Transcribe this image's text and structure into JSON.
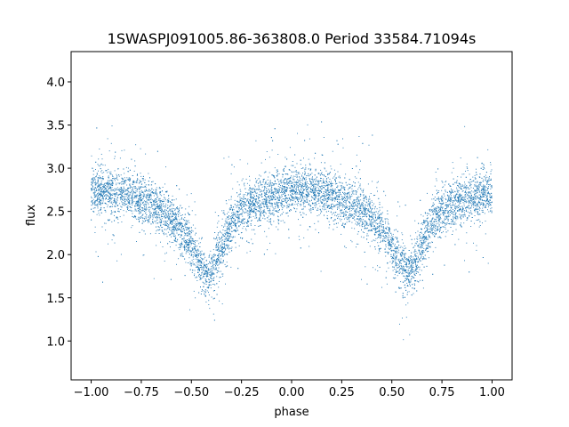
{
  "chart_data": {
    "type": "scatter",
    "title": "1SWASPJ091005.86-363808.0 Period 33584.71094s",
    "xlabel": "phase",
    "ylabel": "flux",
    "xlim": [
      -1.1,
      1.1
    ],
    "ylim": [
      0.55,
      4.35
    ],
    "x_ticks": [
      -1.0,
      -0.75,
      -0.5,
      -0.25,
      0.0,
      0.25,
      0.5,
      0.75,
      1.0
    ],
    "x_tick_labels": [
      "−1.00",
      "−0.75",
      "−0.50",
      "−0.25",
      "0.00",
      "0.25",
      "0.50",
      "0.75",
      "1.00"
    ],
    "y_ticks": [
      1.0,
      1.5,
      2.0,
      2.5,
      3.0,
      3.5,
      4.0
    ],
    "y_tick_labels": [
      "1.0",
      "1.5",
      "2.0",
      "2.5",
      "3.0",
      "3.5",
      "4.0"
    ],
    "grid": false,
    "marker_color": "#1f77b4",
    "series": [
      {
        "x": [
          -1.0,
          -0.95,
          -0.9,
          -0.85,
          -0.8,
          -0.75,
          -0.7,
          -0.65,
          -0.6,
          -0.55,
          -0.5,
          -0.45,
          -0.42,
          -0.4,
          -0.35,
          -0.3,
          -0.25,
          -0.2,
          -0.15,
          -0.1,
          -0.05,
          0.0,
          0.05,
          0.1,
          0.15,
          0.2,
          0.25,
          0.3,
          0.35,
          0.4,
          0.45,
          0.5,
          0.55,
          0.58,
          0.6,
          0.65,
          0.7,
          0.75,
          0.8,
          0.85,
          0.9,
          0.95,
          1.0
        ],
        "y": [
          2.72,
          2.74,
          2.73,
          2.71,
          2.68,
          2.64,
          2.59,
          2.52,
          2.42,
          2.28,
          2.08,
          1.85,
          1.74,
          1.8,
          2.1,
          2.35,
          2.5,
          2.58,
          2.63,
          2.67,
          2.7,
          2.72,
          2.74,
          2.73,
          2.71,
          2.68,
          2.64,
          2.59,
          2.52,
          2.42,
          2.28,
          2.08,
          1.85,
          1.76,
          1.8,
          2.1,
          2.35,
          2.5,
          2.58,
          2.63,
          2.67,
          2.7,
          2.72
        ]
      }
    ]
  }
}
